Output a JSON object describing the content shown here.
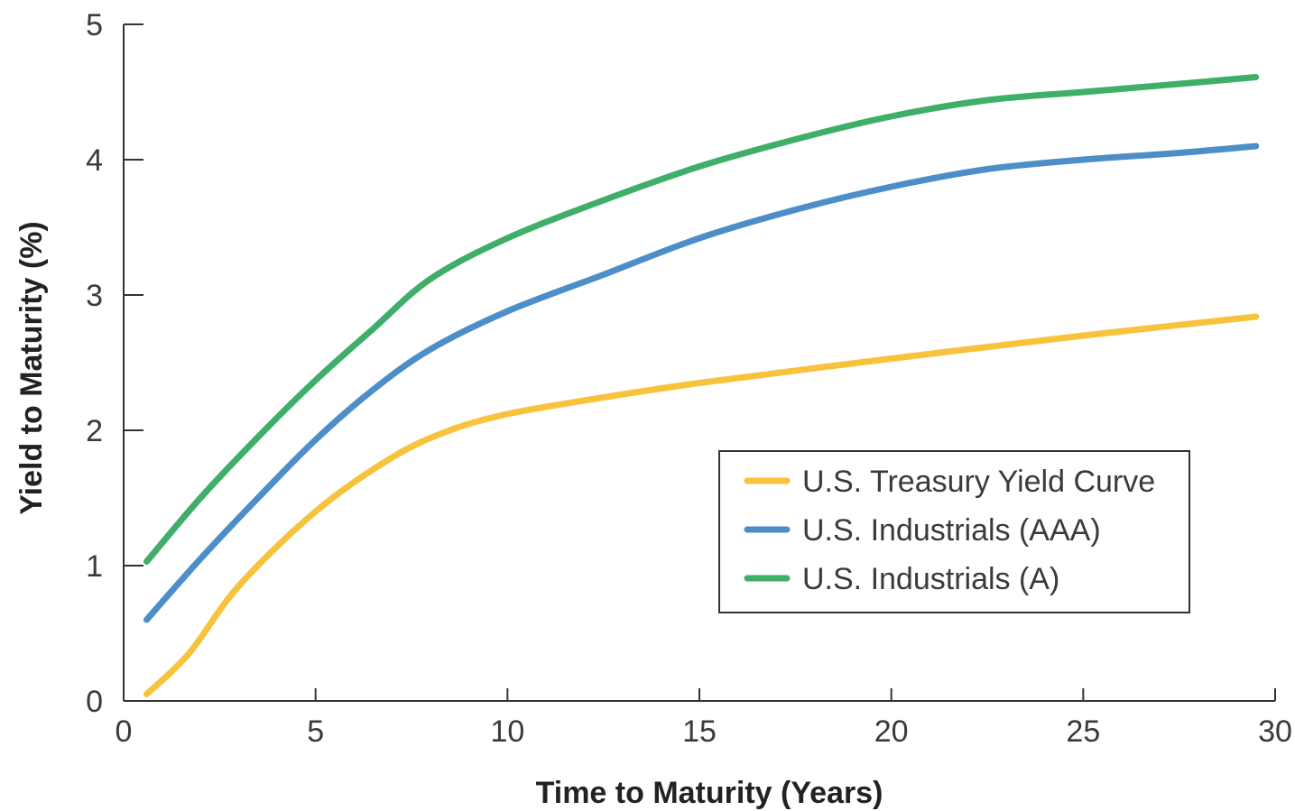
{
  "chart_data": {
    "type": "line",
    "title": "",
    "xlabel": "Time to Maturity (Years)",
    "ylabel": "Yield to Maturity (%)",
    "xlim": [
      0,
      30
    ],
    "ylim": [
      0,
      5
    ],
    "xticks": [
      0,
      5,
      10,
      15,
      20,
      25,
      30
    ],
    "yticks": [
      0,
      1,
      2,
      3,
      4,
      5
    ],
    "grid": false,
    "legend_position": "center-right",
    "series": [
      {
        "name": "U.S. Treasury Yield Curve",
        "color": "#f7c33c",
        "x": [
          0.6,
          1.7,
          3,
          5,
          7,
          8.5,
          10,
          12,
          15,
          20,
          25,
          29.5
        ],
        "y": [
          0.05,
          0.35,
          0.85,
          1.4,
          1.8,
          2.0,
          2.12,
          2.22,
          2.35,
          2.53,
          2.7,
          2.84
        ]
      },
      {
        "name": "U.S. Industrials (AAA)",
        "color": "#4d8ec9",
        "x": [
          0.6,
          2,
          3.5,
          5,
          6.5,
          8,
          10,
          12.5,
          15,
          17.5,
          20,
          22.5,
          25,
          27.5,
          29.5
        ],
        "y": [
          0.6,
          1.05,
          1.5,
          1.93,
          2.3,
          2.6,
          2.88,
          3.15,
          3.42,
          3.63,
          3.8,
          3.93,
          4.0,
          4.05,
          4.1
        ]
      },
      {
        "name": "U.S. Industrials (A)",
        "color": "#3fae68",
        "x": [
          0.6,
          2,
          3.5,
          5,
          6.5,
          8,
          10,
          12.5,
          15,
          17.5,
          20,
          22.5,
          25,
          27.5,
          29.5
        ],
        "y": [
          1.03,
          1.5,
          1.95,
          2.37,
          2.75,
          3.12,
          3.42,
          3.7,
          3.95,
          4.15,
          4.32,
          4.44,
          4.5,
          4.56,
          4.61
        ]
      }
    ]
  }
}
